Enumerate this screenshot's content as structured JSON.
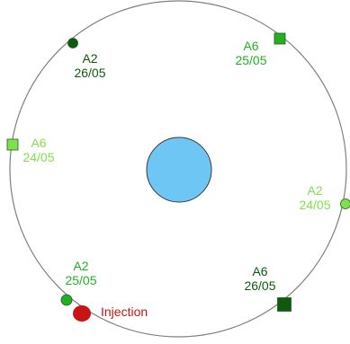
{
  "colors": {
    "ring": "#7f7f7f",
    "center_fill": "#6ec6f5",
    "center_stroke": "#3a3a3a",
    "dark_green": "#0f5a0f",
    "mid_green": "#22b022",
    "light_green": "#7fe24a",
    "injection_red": "#c81414",
    "marker_stroke": "#1f5f1f"
  },
  "markers": [
    {
      "id": "a2-2605",
      "shape": "circle",
      "tone": "dark_green",
      "line1": "A2",
      "line2": "26/05"
    },
    {
      "id": "a6-2505",
      "shape": "square",
      "tone": "mid_green",
      "line1": "A6",
      "line2": "25/05"
    },
    {
      "id": "a6-2405",
      "shape": "square",
      "tone": "light_green",
      "line1": "A6",
      "line2": "24/05"
    },
    {
      "id": "a2-2405",
      "shape": "circle",
      "tone": "light_green",
      "line1": "A2",
      "line2": "24/05"
    },
    {
      "id": "a2-2505",
      "shape": "circle",
      "tone": "mid_green",
      "line1": "A2",
      "line2": "25/05"
    },
    {
      "id": "a6-2605",
      "shape": "square",
      "tone": "dark_green",
      "line1": "A6",
      "line2": "26/05"
    }
  ],
  "injection": {
    "label": "Injection"
  }
}
